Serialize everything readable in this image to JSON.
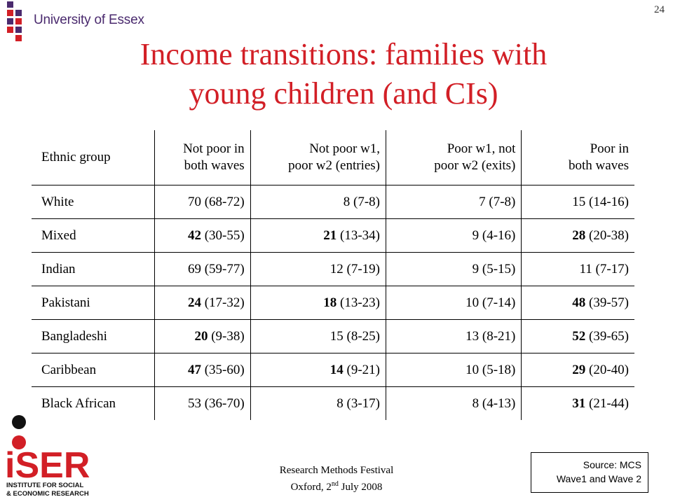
{
  "header": {
    "university": "University of Essex",
    "page_number": "24",
    "brand_colors": {
      "purple": "#4a2a6e",
      "red": "#d21f26"
    }
  },
  "title": {
    "line1": "Income transitions: families with",
    "line2": "young children (and CIs)"
  },
  "table": {
    "headers": [
      {
        "line1": "Ethnic group",
        "line2": ""
      },
      {
        "line1": "Not poor in",
        "line2": "both waves"
      },
      {
        "line1": "Not poor w1,",
        "line2": "poor w2 (entries)"
      },
      {
        "line1": "Poor w1, not",
        "line2": "poor w2 (exits)"
      },
      {
        "line1": "Poor in",
        "line2": "both waves"
      }
    ],
    "rows": [
      {
        "group": "White",
        "cells": [
          {
            "v": "70",
            "ci": " (68-72)",
            "bold": false
          },
          {
            "v": "8",
            "ci": " (7-8)",
            "bold": false
          },
          {
            "v": "7",
            "ci": " (7-8)",
            "bold": false
          },
          {
            "v": "15",
            "ci": " (14-16)",
            "bold": false
          }
        ]
      },
      {
        "group": "Mixed",
        "cells": [
          {
            "v": "42",
            "ci": " (30-55)",
            "bold": true
          },
          {
            "v": "21",
            "ci": " (13-34)",
            "bold": true
          },
          {
            "v": "9",
            "ci": " (4-16)",
            "bold": false
          },
          {
            "v": "28",
            "ci": " (20-38)",
            "bold": true
          }
        ]
      },
      {
        "group": "Indian",
        "cells": [
          {
            "v": "69",
            "ci": " (59-77)",
            "bold": false
          },
          {
            "v": "12",
            "ci": " (7-19)",
            "bold": false
          },
          {
            "v": "9",
            "ci": " (5-15)",
            "bold": false
          },
          {
            "v": "11",
            "ci": " (7-17)",
            "bold": false
          }
        ]
      },
      {
        "group": "Pakistani",
        "cells": [
          {
            "v": "24",
            "ci": " (17-32)",
            "bold": true
          },
          {
            "v": "18",
            "ci": " (13-23)",
            "bold": true
          },
          {
            "v": "10",
            "ci": " (7-14)",
            "bold": false
          },
          {
            "v": "48",
            "ci": " (39-57)",
            "bold": true
          }
        ]
      },
      {
        "group": "Bangladeshi",
        "cells": [
          {
            "v": "20",
            "ci": " (9-38)",
            "bold": true
          },
          {
            "v": "15",
            "ci": " (8-25)",
            "bold": false
          },
          {
            "v": "13",
            "ci": " (8-21)",
            "bold": false
          },
          {
            "v": "52",
            "ci": " (39-65)",
            "bold": true
          }
        ]
      },
      {
        "group": "Caribbean",
        "cells": [
          {
            "v": "47",
            "ci": " (35-60)",
            "bold": true
          },
          {
            "v": "14",
            "ci": " (9-21)",
            "bold": true
          },
          {
            "v": "10",
            "ci": " (5-18)",
            "bold": false
          },
          {
            "v": "29",
            "ci": " (20-40)",
            "bold": true
          }
        ]
      },
      {
        "group": "Black African",
        "cells": [
          {
            "v": "53",
            "ci": " (36-70)",
            "bold": false
          },
          {
            "v": "8",
            "ci": " (3-17)",
            "bold": false
          },
          {
            "v": "8",
            "ci": " (4-13)",
            "bold": false
          },
          {
            "v": "31",
            "ci": " (21-44)",
            "bold": true
          }
        ]
      }
    ]
  },
  "iser_logo": {
    "wordmark": "iSER",
    "line1": "INSTITUTE FOR SOCIAL",
    "line2": "& ECONOMIC RESEARCH"
  },
  "footer": {
    "line1": "Research Methods Festival",
    "line2_prefix": "Oxford, 2",
    "line2_sup": "nd",
    "line2_suffix": " July 2008"
  },
  "source": {
    "line1": "Source: MCS",
    "line2": "Wave1 and Wave 2"
  }
}
